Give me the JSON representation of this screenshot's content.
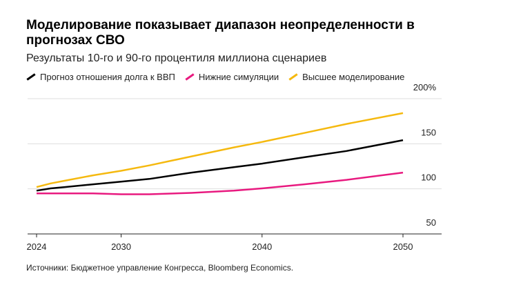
{
  "title": "Моделирование показывает диапазон неопределенности в прогнозах СВО",
  "subtitle": "Результаты 10-го и 90-го процентиля миллиона сценариев",
  "source": "Источники: Бюджетное управление Конгресса, Bloomberg Economics.",
  "chart_data": {
    "type": "line",
    "title": "Моделирование показывает диапазон неопределенности в прогнозах СВО",
    "ylim": [
      50,
      200
    ],
    "xlim": [
      2024,
      2050
    ],
    "yticks": [
      {
        "v": 200,
        "label": "200%"
      },
      {
        "v": 150,
        "label": "150"
      },
      {
        "v": 100,
        "label": "100"
      },
      {
        "v": 50,
        "label": "50"
      }
    ],
    "xticks": [
      {
        "v": 2024,
        "label": "2024"
      },
      {
        "v": 2030,
        "label": "2030"
      },
      {
        "v": 2040,
        "label": "2040"
      },
      {
        "v": 2050,
        "label": "2050"
      }
    ],
    "grid": true,
    "legend_position": "top",
    "series": [
      {
        "name": "Прогноз отношения долга к ВВП",
        "color": "#000000",
        "x": [
          2024,
          2025,
          2026,
          2028,
          2030,
          2032,
          2035,
          2038,
          2040,
          2043,
          2046,
          2050
        ],
        "y": [
          98,
          100.5,
          102,
          105,
          108,
          111,
          118,
          124,
          128,
          135,
          142,
          154
        ]
      },
      {
        "name": "Нижние симуляции",
        "color": "#e8197f",
        "x": [
          2024,
          2026,
          2028,
          2030,
          2032,
          2035,
          2038,
          2040,
          2043,
          2046,
          2050
        ],
        "y": [
          95,
          95,
          95,
          94,
          94,
          95.5,
          98,
          100.5,
          105,
          110,
          118
        ]
      },
      {
        "name": "Высшее моделирование",
        "color": "#f5b90f",
        "x": [
          2024,
          2025,
          2026,
          2028,
          2030,
          2032,
          2035,
          2038,
          2040,
          2043,
          2046,
          2050
        ],
        "y": [
          102,
          106,
          109,
          115,
          120,
          126,
          136,
          146,
          152,
          162,
          172,
          184
        ]
      }
    ]
  }
}
